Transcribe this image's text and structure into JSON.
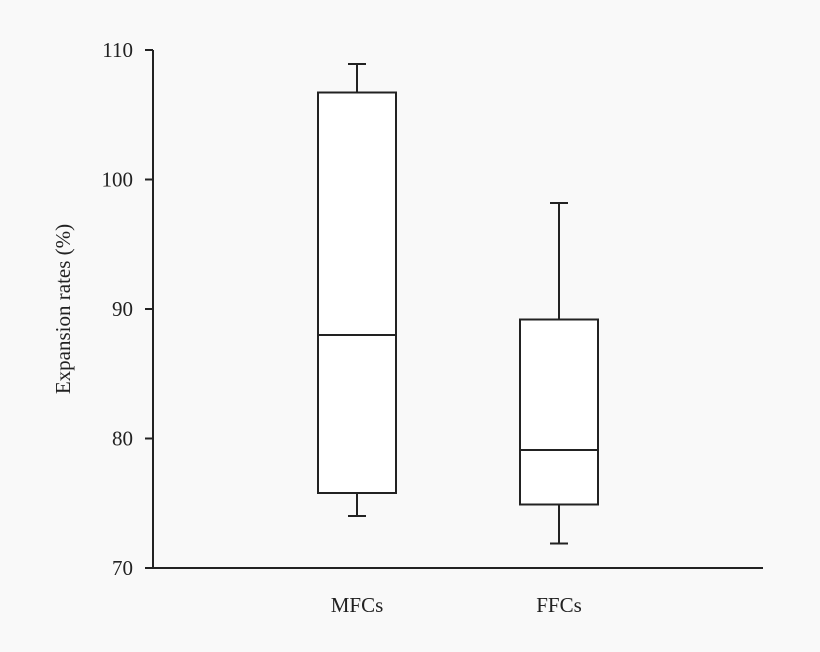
{
  "chart_data": {
    "type": "box",
    "title": "",
    "xlabel": "",
    "ylabel": "Expansion rates (%)",
    "ylim": [
      70,
      110
    ],
    "yticks": [
      70,
      80,
      90,
      100,
      110
    ],
    "grid": false,
    "categories": [
      "MFCs",
      "FFCs"
    ],
    "boxes": [
      {
        "category": "MFCs",
        "whisker_low": 74,
        "q1": 75.8,
        "median": 88,
        "q3": 106.7,
        "whisker_high": 108.9
      },
      {
        "category": "FFCs",
        "whisker_low": 71.9,
        "q1": 74.9,
        "median": 79.1,
        "q3": 89.2,
        "whisker_high": 98.2
      }
    ]
  }
}
